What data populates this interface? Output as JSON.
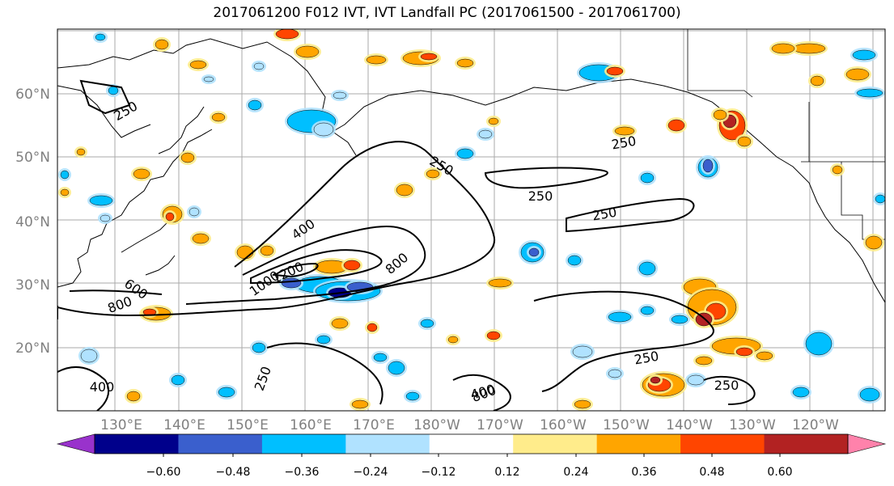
{
  "title": "2017061200 F012 IVT, IVT Landfall PC (2017061500 - 2017061700)",
  "map": {
    "lon_labels": [
      "130°E",
      "140°E",
      "150°E",
      "160°E",
      "170°E",
      "180°W",
      "170°W",
      "160°W",
      "150°W",
      "140°W",
      "130°W",
      "120°W"
    ],
    "lat_labels": [
      "20°N",
      "30°N",
      "40°N",
      "50°N",
      "60°N"
    ],
    "contour_labels": [
      "250",
      "250",
      "250",
      "250",
      "250",
      "400",
      "800",
      "600",
      "800",
      "1000",
      "1200",
      "400",
      "250",
      "400",
      "250",
      "250",
      "800"
    ]
  },
  "colorbar": {
    "ticks": [
      "−0.60",
      "−0.48",
      "−0.36",
      "−0.24",
      "−0.12",
      "0.12",
      "0.24",
      "0.36",
      "0.48",
      "0.60"
    ],
    "colors": [
      "#9932cc",
      "#00008b",
      "#3a5fcd",
      "#00bfff",
      "#b0e2ff",
      "#ffffff",
      "#ffec8b",
      "#ffa500",
      "#ff4500",
      "#b22222",
      "#ff82ab"
    ]
  }
}
